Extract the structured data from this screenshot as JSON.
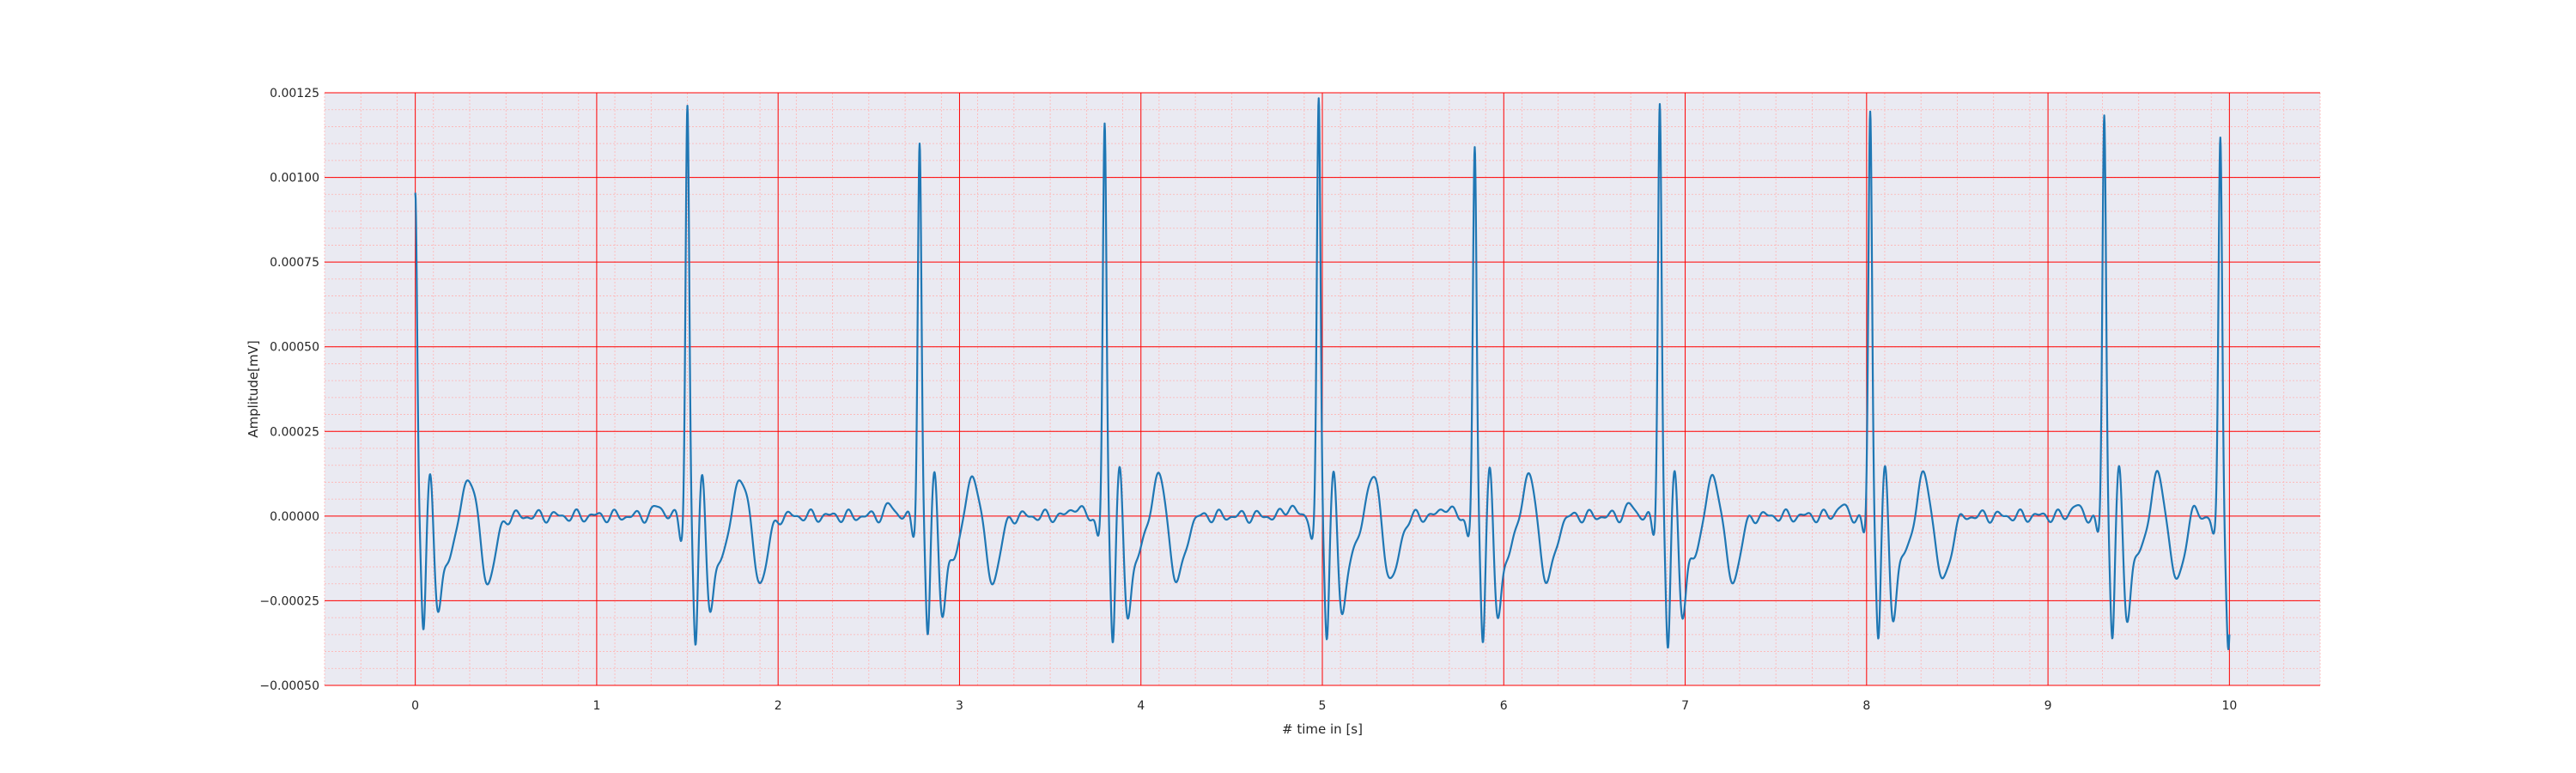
{
  "chart_data": {
    "type": "line",
    "title": "",
    "xlabel": "# time in [s]",
    "ylabel": "Amplitude[mV]",
    "xlim": [
      -0.5,
      10.5
    ],
    "ylim": [
      -0.0005,
      0.00125
    ],
    "x_ticks": [
      0,
      1,
      2,
      3,
      4,
      5,
      6,
      7,
      8,
      9,
      10
    ],
    "x_tick_labels": [
      "0",
      "1",
      "2",
      "3",
      "4",
      "5",
      "6",
      "7",
      "8",
      "9",
      "10"
    ],
    "y_ticks": [
      -0.0005,
      -0.00025,
      0,
      0.00025,
      0.0005,
      0.00075,
      0.001,
      0.00125
    ],
    "y_tick_labels": [
      "−0.00050",
      "−0.00025",
      "0.00000",
      "0.00025",
      "0.00050",
      "0.00075",
      "0.00100",
      "0.00125"
    ],
    "grid": true,
    "grid_major_color": "#ff0000",
    "grid_minor_color": "#ffb3b3",
    "background_color": "#eaeaf2",
    "series": [
      {
        "color": "#1f77b4",
        "beats": [
          {
            "t": 0.0,
            "r": 0.00092,
            "s": -0.00038
          },
          {
            "t": 1.5,
            "r": 0.00118,
            "s": -0.00043
          },
          {
            "t": 2.78,
            "r": 0.00108,
            "s": -0.0004
          },
          {
            "t": 3.8,
            "r": 0.00112,
            "s": -0.0004
          },
          {
            "t": 4.98,
            "r": 0.00119,
            "s": -0.0004
          },
          {
            "t": 5.84,
            "r": 0.00105,
            "s": -0.0004
          },
          {
            "t": 6.86,
            "r": 0.0012,
            "s": -0.00044
          },
          {
            "t": 8.02,
            "r": 0.00117,
            "s": -0.0004
          },
          {
            "t": 9.31,
            "r": 0.00116,
            "s": -0.0004
          },
          {
            "t": 9.95,
            "r": 0.00109,
            "s": -0.00044
          }
        ],
        "t_wave_amplitude": 0.000155,
        "end_time": 10.0
      }
    ]
  }
}
